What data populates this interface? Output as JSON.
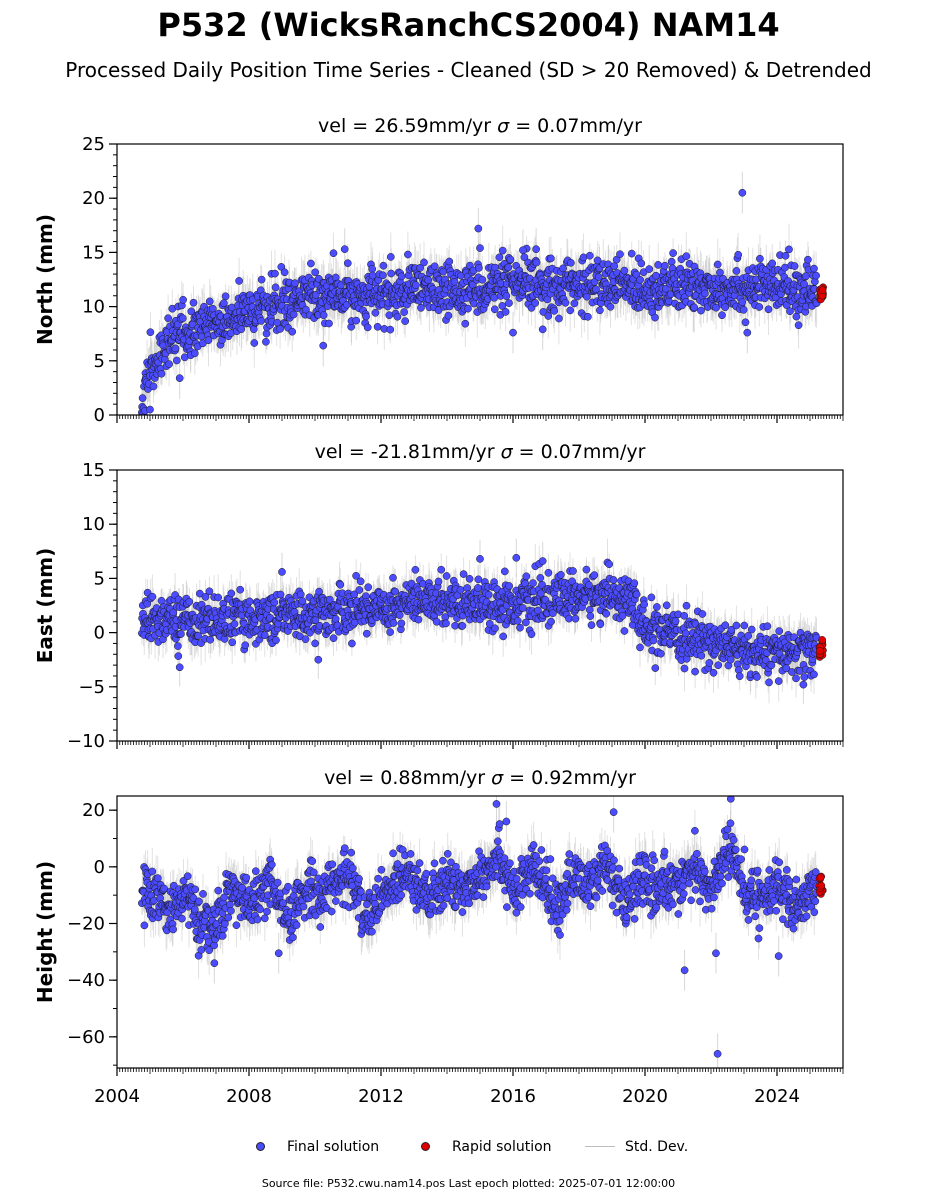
{
  "title": "P532 (WicksRanchCS2004) NAM14",
  "subtitle": "Processed Daily Position Time Series - Cleaned (SD > 20 Removed) & Detrended",
  "legend": {
    "final": "Final solution",
    "rapid": "Rapid solution",
    "stddev": "Std. Dev."
  },
  "footer": "Source file: P532.cwu.nam14.pos  Last epoch plotted: 2025-07-01 12:00:00",
  "colors": {
    "final": "#4b4bff",
    "rapid": "#e00000",
    "stddev": "#bdbdbd",
    "edge": "#1a1a1a"
  },
  "chart_data": [
    {
      "type": "scatter",
      "title_vel": "vel = 26.59mm/yr",
      "title_sigma": "= 0.07mm/yr",
      "ylabel": "North (mm)",
      "xlim": [
        2004,
        2026
      ],
      "ylim": [
        0,
        25
      ],
      "yticks": [
        0,
        5,
        10,
        15,
        20,
        25
      ],
      "trend_points": [
        [
          2004.75,
          1.5
        ],
        [
          2005.0,
          4.0
        ],
        [
          2005.5,
          6.5
        ],
        [
          2006.0,
          7.5
        ],
        [
          2007.0,
          8.5
        ],
        [
          2008.0,
          9.5
        ],
        [
          2009.0,
          10.3
        ],
        [
          2010.0,
          10.8
        ],
        [
          2011.0,
          11.0
        ],
        [
          2012.0,
          11.0
        ],
        [
          2013.0,
          11.3
        ],
        [
          2014.0,
          11.5
        ],
        [
          2015.0,
          11.7
        ],
        [
          2016.0,
          12.0
        ],
        [
          2017.0,
          12.0
        ],
        [
          2018.0,
          12.0
        ],
        [
          2019.0,
          12.0
        ],
        [
          2020.0,
          11.8
        ],
        [
          2021.0,
          11.8
        ],
        [
          2022.0,
          11.8
        ],
        [
          2023.0,
          11.8
        ],
        [
          2024.0,
          11.8
        ],
        [
          2025.2,
          11.5
        ]
      ],
      "scatter_sd": 1.2,
      "outliers": [
        [
          2022.95,
          20.5
        ],
        [
          2014.95,
          17.2
        ],
        [
          2010.9,
          15.3
        ],
        [
          2015.0,
          15.4
        ],
        [
          2016.3,
          15.2
        ],
        [
          2016.7,
          15.3
        ],
        [
          2016.0,
          7.6
        ],
        [
          2016.9,
          7.9
        ],
        [
          2023.1,
          7.6
        ],
        [
          2004.85,
          0.4
        ],
        [
          2005.0,
          0.5
        ],
        [
          2005.9,
          3.4
        ],
        [
          2010.25,
          6.4
        ]
      ],
      "rapid_range": [
        10.6,
        12.0
      ],
      "ticklabel_x": false
    },
    {
      "type": "scatter",
      "title_vel": "vel = -21.81mm/yr",
      "title_sigma": "= 0.07mm/yr",
      "ylabel": "East (mm)",
      "xlim": [
        2004,
        2026
      ],
      "ylim": [
        -10,
        15
      ],
      "yticks": [
        -10,
        -5,
        0,
        5,
        10,
        15
      ],
      "trend_points": [
        [
          2004.75,
          1.3
        ],
        [
          2006.0,
          1.2
        ],
        [
          2008.0,
          1.3
        ],
        [
          2009.0,
          1.6
        ],
        [
          2010.0,
          1.6
        ],
        [
          2011.0,
          2.1
        ],
        [
          2012.0,
          2.4
        ],
        [
          2013.0,
          2.8
        ],
        [
          2014.0,
          3.0
        ],
        [
          2015.0,
          2.8
        ],
        [
          2016.0,
          2.6
        ],
        [
          2017.0,
          2.9
        ],
        [
          2018.0,
          3.3
        ],
        [
          2019.0,
          3.5
        ],
        [
          2019.5,
          3.2
        ],
        [
          2020.0,
          0.3
        ],
        [
          2021.0,
          -0.5
        ],
        [
          2022.0,
          -0.8
        ],
        [
          2023.0,
          -1.8
        ],
        [
          2024.0,
          -2.0
        ],
        [
          2025.2,
          -1.8
        ]
      ],
      "scatter_sd": 1.1,
      "outliers": [
        [
          2009.0,
          5.6
        ],
        [
          2015.0,
          6.8
        ],
        [
          2016.1,
          6.9
        ],
        [
          2016.9,
          6.6
        ],
        [
          2005.9,
          -3.2
        ],
        [
          2010.1,
          -2.5
        ],
        [
          2024.8,
          -4.8
        ]
      ],
      "rapid_range": [
        -2.3,
        -0.6
      ],
      "ticklabel_x": false
    },
    {
      "type": "scatter",
      "title_vel": "vel = 0.88mm/yr",
      "title_sigma": "= 0.92mm/yr",
      "ylabel": "Height (mm)",
      "xlim": [
        2004,
        2026
      ],
      "ylim": [
        -71,
        25
      ],
      "yticks": [
        -60,
        -40,
        -20,
        0,
        20
      ],
      "xticks": [
        2004,
        2008,
        2012,
        2016,
        2020,
        2024
      ],
      "trend_points": [
        [
          2004.75,
          -8
        ],
        [
          2005.5,
          -15
        ],
        [
          2006.0,
          -10
        ],
        [
          2006.8,
          -24
        ],
        [
          2007.5,
          -8
        ],
        [
          2008.0,
          -14
        ],
        [
          2008.6,
          -6
        ],
        [
          2009.2,
          -20
        ],
        [
          2009.8,
          -6
        ],
        [
          2010.2,
          -10
        ],
        [
          2011.0,
          -2
        ],
        [
          2011.5,
          -18
        ],
        [
          2012.0,
          -12
        ],
        [
          2012.8,
          0
        ],
        [
          2013.5,
          -12
        ],
        [
          2014.0,
          -6
        ],
        [
          2014.5,
          -8
        ],
        [
          2015.0,
          -2
        ],
        [
          2015.6,
          4
        ],
        [
          2016.1,
          -10
        ],
        [
          2016.6,
          0
        ],
        [
          2017.3,
          -14
        ],
        [
          2017.8,
          -4
        ],
        [
          2018.3,
          -6
        ],
        [
          2018.8,
          0
        ],
        [
          2019.4,
          -14
        ],
        [
          2019.9,
          -4
        ],
        [
          2020.5,
          -8
        ],
        [
          2021.0,
          -4
        ],
        [
          2021.5,
          -2
        ],
        [
          2022.0,
          -8
        ],
        [
          2022.6,
          8
        ],
        [
          2023.0,
          -10
        ],
        [
          2023.5,
          -10
        ],
        [
          2024.0,
          -6
        ],
        [
          2024.5,
          -16
        ],
        [
          2025.2,
          -8
        ]
      ],
      "scatter_sd": 4.5,
      "outliers": [
        [
          2015.5,
          22.2
        ],
        [
          2019.05,
          19.3
        ],
        [
          2022.6,
          24
        ],
        [
          2022.2,
          -66
        ],
        [
          2022.15,
          -30.5
        ],
        [
          2006.95,
          -34
        ],
        [
          2021.2,
          -36.5
        ],
        [
          2008.9,
          -30.5
        ],
        [
          2024.05,
          -31.5
        ],
        [
          2012.5,
          1
        ],
        [
          2015.8,
          16
        ]
      ],
      "rapid_range": [
        -10,
        -2
      ],
      "ticklabel_x": true
    }
  ]
}
